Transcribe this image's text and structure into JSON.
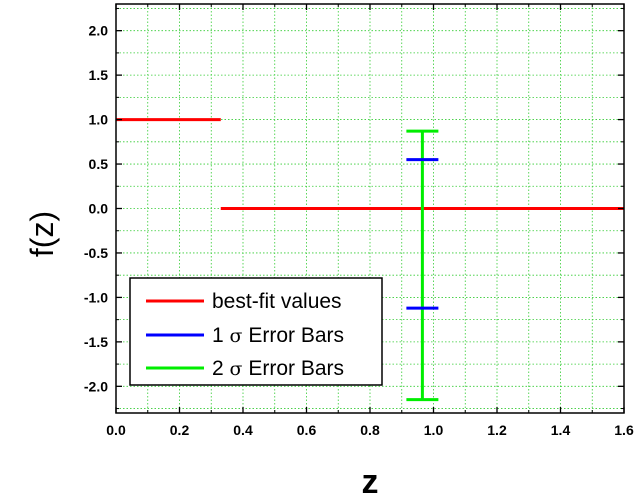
{
  "chart_data": {
    "type": "line",
    "xlabel": "z",
    "ylabel": "f(z)",
    "xlim": [
      0.0,
      1.6
    ],
    "ylim": [
      -2.3,
      2.3
    ],
    "xticks": [
      0.0,
      0.2,
      0.4,
      0.6,
      0.8,
      1.0,
      1.2,
      1.4,
      1.6
    ],
    "xtick_labels": [
      "0.0",
      "0.2",
      "0.4",
      "0.6",
      "0.8",
      "1.0",
      "1.2",
      "1.4",
      "1.6"
    ],
    "yticks": [
      2.0,
      1.5,
      1.0,
      0.5,
      0.0,
      -0.5,
      -1.0,
      -1.5,
      -2.0
    ],
    "ytick_labels": [
      "2.0",
      "1.5",
      "1.0",
      "0.5",
      "0.0",
      "-0.5",
      "-1.0",
      "-1.5",
      "-2.0"
    ],
    "grid": true,
    "legend_position": "bottom-left",
    "series": [
      {
        "name": "best-fit values",
        "color": "#ff0000",
        "segments": [
          {
            "x": [
              0.0,
              0.33
            ],
            "y": [
              1.0,
              1.0
            ]
          },
          {
            "x": [
              0.33,
              1.6
            ],
            "y": [
              0.0,
              0.0
            ]
          }
        ]
      },
      {
        "name": "1 σ Error Bars",
        "name_parts": [
          "1 ",
          "σ",
          " Error Bars"
        ],
        "color": "#0000ff",
        "x": 0.965,
        "upper": 0.55,
        "lower": -1.12
      },
      {
        "name": "2 σ Error Bars",
        "name_parts": [
          "2 ",
          "σ",
          " Error Bars"
        ],
        "color": "#00ee00",
        "x": 0.965,
        "upper": 0.87,
        "lower": -2.15
      }
    ],
    "colors": {
      "grid": "#33cc33",
      "axis": "#000000"
    }
  }
}
